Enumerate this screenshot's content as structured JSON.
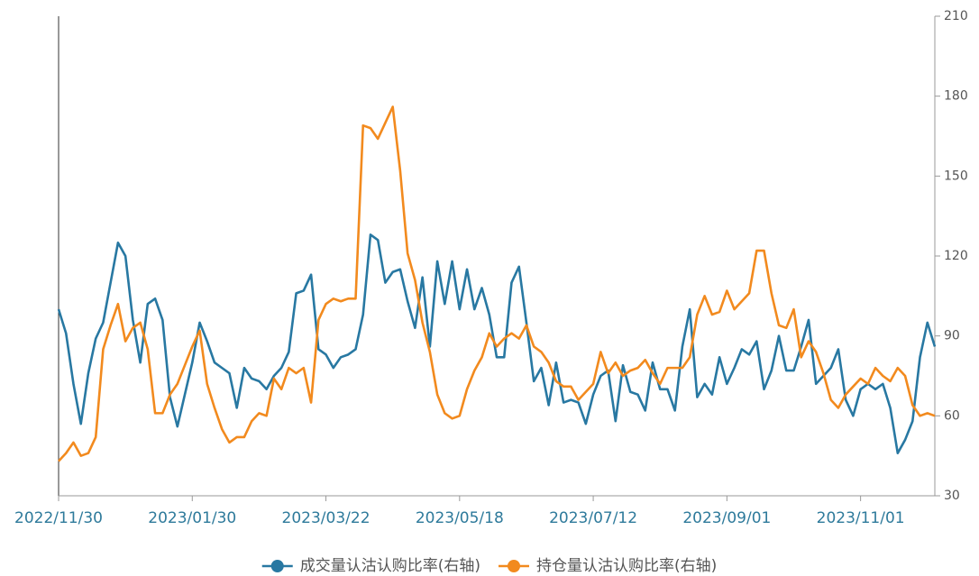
{
  "chart_data": {
    "type": "line",
    "categories": [
      "2022/11/30",
      null,
      null,
      null,
      null,
      null,
      null,
      null,
      null,
      null,
      null,
      null,
      null,
      null,
      null,
      null,
      null,
      null,
      "2023/01/30",
      null,
      null,
      null,
      null,
      null,
      null,
      null,
      null,
      null,
      null,
      null,
      null,
      null,
      null,
      null,
      null,
      null,
      "2023/03/22",
      null,
      null,
      null,
      null,
      null,
      null,
      null,
      null,
      null,
      null,
      null,
      null,
      null,
      null,
      null,
      null,
      null,
      "2023/05/18",
      null,
      null,
      null,
      null,
      null,
      null,
      null,
      null,
      null,
      null,
      null,
      null,
      null,
      null,
      null,
      null,
      null,
      "2023/07/12",
      null,
      null,
      null,
      null,
      null,
      null,
      null,
      null,
      null,
      null,
      null,
      null,
      null,
      null,
      null,
      null,
      null,
      "2023/09/01",
      null,
      null,
      null,
      null,
      null,
      null,
      null,
      null,
      null,
      null,
      null,
      null,
      null,
      null,
      null,
      null,
      null,
      "2023/11/01",
      null,
      null,
      null,
      null,
      null,
      null,
      null,
      null,
      null,
      null
    ],
    "series": [
      {
        "name": "成交量认沽认购比率(右轴)",
        "color": "#2878a2",
        "axis": "y2",
        "values": [
          100,
          91,
          72,
          57,
          76,
          89,
          95,
          110,
          125,
          120,
          96,
          80,
          102,
          104,
          96,
          67,
          56,
          68,
          80,
          95,
          88,
          80,
          78,
          76,
          63,
          78,
          74,
          73,
          70,
          75,
          78,
          84,
          106,
          107,
          113,
          85,
          83,
          78,
          82,
          83,
          85,
          98,
          128,
          126,
          110,
          114,
          115,
          103,
          93,
          112,
          86,
          118,
          102,
          118,
          100,
          115,
          100,
          108,
          98,
          82,
          82,
          110,
          116,
          95,
          73,
          78,
          64,
          80,
          65,
          66,
          65,
          57,
          68,
          75,
          77,
          58,
          79,
          69,
          68,
          62,
          80,
          70,
          70,
          62,
          86,
          100,
          67,
          72,
          68,
          82,
          72,
          78,
          85,
          83,
          88,
          70,
          77,
          90,
          77,
          77,
          86,
          96,
          72,
          75,
          78,
          85,
          66,
          60,
          70,
          72,
          70,
          72,
          63,
          46,
          51,
          58,
          82,
          95,
          86
        ]
      },
      {
        "name": "持仓量认沽认购比率(右轴)",
        "color": "#f28a1e",
        "axis": "y2",
        "values": [
          43,
          46,
          50,
          45,
          46,
          52,
          85,
          94,
          102,
          88,
          93,
          95,
          85,
          61,
          61,
          68,
          72,
          79,
          86,
          92,
          72,
          63,
          55,
          50,
          52,
          52,
          58,
          61,
          60,
          74,
          70,
          78,
          76,
          78,
          65,
          96,
          102,
          104,
          103,
          104,
          104,
          169,
          168,
          164,
          170,
          176,
          152,
          121,
          111,
          95,
          84,
          68,
          61,
          59,
          60,
          70,
          77,
          82,
          91,
          86,
          89,
          91,
          89,
          94,
          86,
          84,
          80,
          73,
          71,
          71,
          66,
          69,
          72,
          84,
          76,
          80,
          75,
          77,
          78,
          81,
          76,
          72,
          78,
          78,
          78,
          82,
          98,
          105,
          98,
          99,
          107,
          100,
          103,
          106,
          122,
          122,
          106,
          94,
          93,
          100,
          82,
          88,
          84,
          76,
          66,
          63,
          68,
          71,
          74,
          72,
          78,
          75,
          73,
          78,
          75,
          64,
          60,
          61,
          60
        ]
      }
    ],
    "y2lim": [
      30,
      210
    ],
    "y2ticks": [
      30,
      60,
      90,
      120,
      150,
      180,
      210
    ]
  }
}
